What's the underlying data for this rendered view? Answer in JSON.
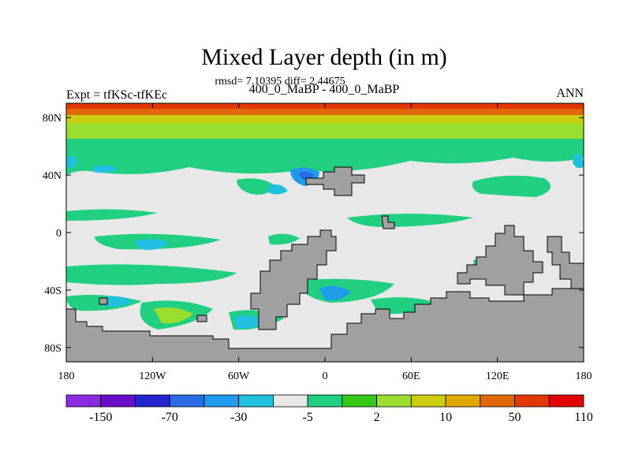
{
  "chart_data": {
    "type": "heatmap",
    "title": "Mixed Layer depth (in m)",
    "subtitle": "rmsd= 7.10395 diff= 2.44675",
    "left_label": "Expt = tfKSc-tfKEc",
    "center_label": "400_0_MaBP - 400_0_MaBP",
    "right_label": "ANN",
    "x_ticks": [
      "180",
      "120W",
      "60W",
      "0",
      "60E",
      "120E",
      "180"
    ],
    "y_ticks": [
      "80N",
      "40N",
      "0",
      "40S",
      "80S"
    ],
    "x_range": [
      -180,
      180
    ],
    "y_range": [
      -90,
      90
    ],
    "colorbar": {
      "colors": [
        "#8a2be2",
        "#6a0dca",
        "#2424d0",
        "#2a6ae6",
        "#1f9cee",
        "#20c0e0",
        "#e8e8e8",
        "#20d080",
        "#35c818",
        "#9ade30",
        "#cccc10",
        "#e0a800",
        "#e06808",
        "#e03800",
        "#e00000"
      ],
      "labels": [
        "-150",
        "-70",
        "-30",
        "-5",
        "2",
        "10",
        "50",
        "110"
      ]
    },
    "colors": {
      "land": "#a0a0a0",
      "neutral": "#e8e8e8"
    }
  }
}
